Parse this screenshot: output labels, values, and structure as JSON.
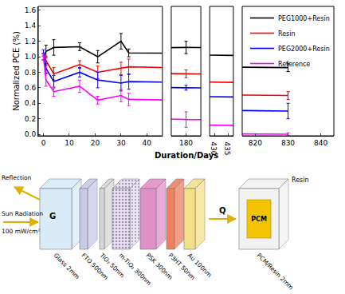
{
  "chart_data": {
    "type": "line",
    "y_label": "Normalized PCE (%)",
    "x_label": "Duration/Days",
    "x": [
      0,
      1,
      4,
      14,
      21,
      30,
      33,
      180,
      830
    ],
    "series": [
      {
        "name": "PEG1000+Resin",
        "color": "#000000",
        "values": [
          1.0,
          1.07,
          1.12,
          1.13,
          1.0,
          1.2,
          1.05,
          1.12,
          0.86
        ],
        "errors": [
          0.04,
          0.08,
          0.1,
          0.05,
          0.08,
          0.1,
          0.05,
          0.08,
          0.05
        ]
      },
      {
        "name": "Resin",
        "color": "#ff0000",
        "values": [
          1.0,
          0.95,
          0.78,
          0.9,
          0.8,
          0.85,
          0.87,
          0.78,
          0.5
        ],
        "errors": [
          0.04,
          0.06,
          0.08,
          0.05,
          0.08,
          0.08,
          0.1,
          0.05,
          0.05
        ]
      },
      {
        "name": "PEG2000+Resin",
        "color": "#0000ff",
        "values": [
          1.05,
          0.85,
          0.68,
          0.8,
          0.7,
          0.66,
          0.68,
          0.6,
          0.3
        ],
        "errors": [
          0.04,
          0.06,
          0.08,
          0.06,
          0.1,
          0.1,
          0.1,
          0.03,
          0.1
        ]
      },
      {
        "name": "Reference",
        "color": "#ff00ff",
        "values": [
          1.0,
          0.7,
          0.55,
          0.62,
          0.44,
          0.5,
          0.45,
          0.19,
          0.0
        ],
        "errors": [
          0.04,
          0.08,
          0.06,
          0.08,
          0.05,
          0.08,
          0.08,
          0.1,
          0.02
        ]
      }
    ],
    "ylim": [
      -0.02,
      1.65
    ],
    "yticks": [
      {
        "value": 0,
        "label": "0.0"
      },
      {
        "value": 0.2,
        "label": "0.2"
      },
      {
        "value": 0.4,
        "label": "0.4"
      },
      {
        "value": 0.6,
        "label": "0.6"
      },
      {
        "value": 0.8,
        "label": "0.8"
      },
      {
        "value": 1,
        "label": "1.0"
      },
      {
        "value": 1.2,
        "label": "1.2"
      },
      {
        "value": 1.4,
        "label": "1.4"
      },
      {
        "value": 1.6,
        "label": "1.6"
      }
    ],
    "x_segments": [
      {
        "xlim": [
          -2,
          46
        ],
        "xticks": [
          0,
          10,
          20,
          30,
          40
        ]
      },
      {
        "xlim": [
          176,
          184
        ],
        "xticks": [
          180
        ]
      },
      {
        "xlim": [
          428,
          437
        ],
        "xticks": [
          430,
          435
        ]
      },
      {
        "xlim": [
          816,
          844
        ],
        "xticks": [
          820,
          830,
          840
        ]
      }
    ],
    "legend": "top right",
    "grid": false
  },
  "diagram": {
    "reflection": "Reflection",
    "radiation": {
      "label": "Sun Radiation",
      "intensity": "100 mW/cm²"
    },
    "g_label": "G",
    "q_label": "Q",
    "layers": [
      {
        "name": "Glass",
        "thickness": "2mm"
      },
      {
        "name": "FTO",
        "thickness": "500nm"
      },
      {
        "name": "TiO₂",
        "thickness": "50nm"
      },
      {
        "name": "m-TiO₂",
        "thickness": "300nm"
      },
      {
        "name": "PSK",
        "thickness": "300nm"
      },
      {
        "name": "P3HT",
        "thickness": "50nm"
      },
      {
        "name": "Au",
        "thickness": "100nm"
      }
    ],
    "pcm": {
      "inner": "PCM",
      "outer": "Resin",
      "name": "PCM/Resin",
      "thickness": "2mm"
    }
  }
}
